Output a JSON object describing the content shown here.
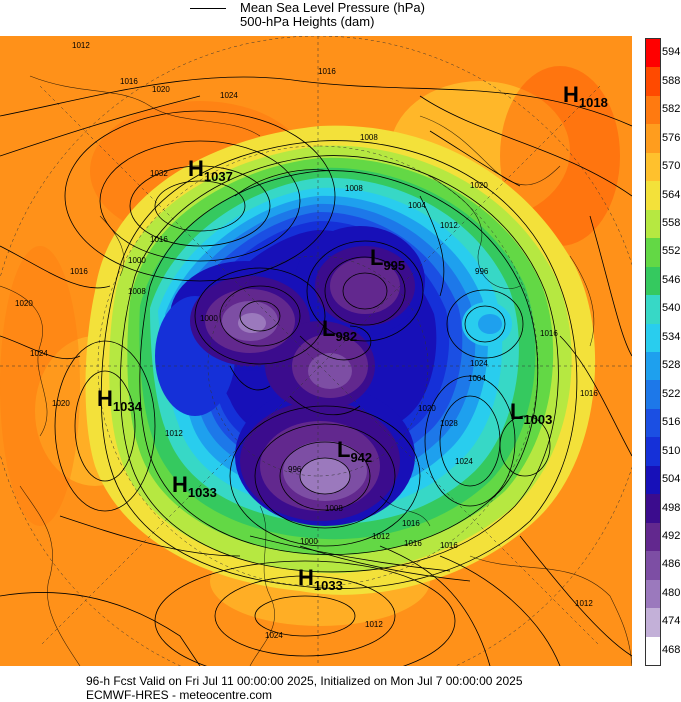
{
  "legend": {
    "mslp_label": "Mean Sea Level Pressure (hPa)",
    "heights_label": "500-hPa Heights (dam)"
  },
  "colorbar": {
    "ticks": [
      "594",
      "588",
      "582",
      "576",
      "570",
      "564",
      "558",
      "552",
      "546",
      "540",
      "534",
      "528",
      "522",
      "516",
      "510",
      "504",
      "498",
      "492",
      "486",
      "480",
      "474",
      "468"
    ],
    "colors": [
      "#ff0000",
      "#ff4a00",
      "#ff7a10",
      "#ff9d1e",
      "#ffc12d",
      "#f3e13a",
      "#b6e841",
      "#63d845",
      "#35c95f",
      "#37d8c6",
      "#29cdee",
      "#1ea0ee",
      "#1d78e9",
      "#1b4fe3",
      "#1530d8",
      "#1710b8",
      "#3b0c8d",
      "#62288e",
      "#7d4ea4",
      "#9b79bd",
      "#c3b0d8",
      "#ffffff"
    ]
  },
  "pressure_centers": [
    {
      "letter": "H",
      "value": "1037"
    },
    {
      "letter": "H",
      "value": "1018"
    },
    {
      "letter": "L",
      "value": "995"
    },
    {
      "letter": "L",
      "value": "982"
    },
    {
      "letter": "H",
      "value": "1034"
    },
    {
      "letter": "L",
      "value": "1003"
    },
    {
      "letter": "H",
      "value": "1033"
    },
    {
      "letter": "L",
      "value": "942"
    },
    {
      "letter": "H",
      "value": "1033"
    }
  ],
  "isobar_labels": [
    "1012",
    "1016",
    "1020",
    "1024",
    "1032",
    "1016",
    "1008",
    "1004",
    "1012",
    "1020",
    "1016",
    "996",
    "1008",
    "1016",
    "1000",
    "1016",
    "1020",
    "1008",
    "1024",
    "1012",
    "1000",
    "1020",
    "1024",
    "1012",
    "1016",
    "1016",
    "1012",
    "1016",
    "1024",
    "1024",
    "1028",
    "1020",
    "1016",
    "1012",
    "1000",
    "1008",
    "996",
    "1004"
  ],
  "footer": {
    "line1": "96-h Fcst Valid on Fri Jul 11 00:00:00 2025, Initialized on Mon Jul  7 00:00:00 2025",
    "line2": "ECMWF-HRES  - meteocentre.com"
  }
}
